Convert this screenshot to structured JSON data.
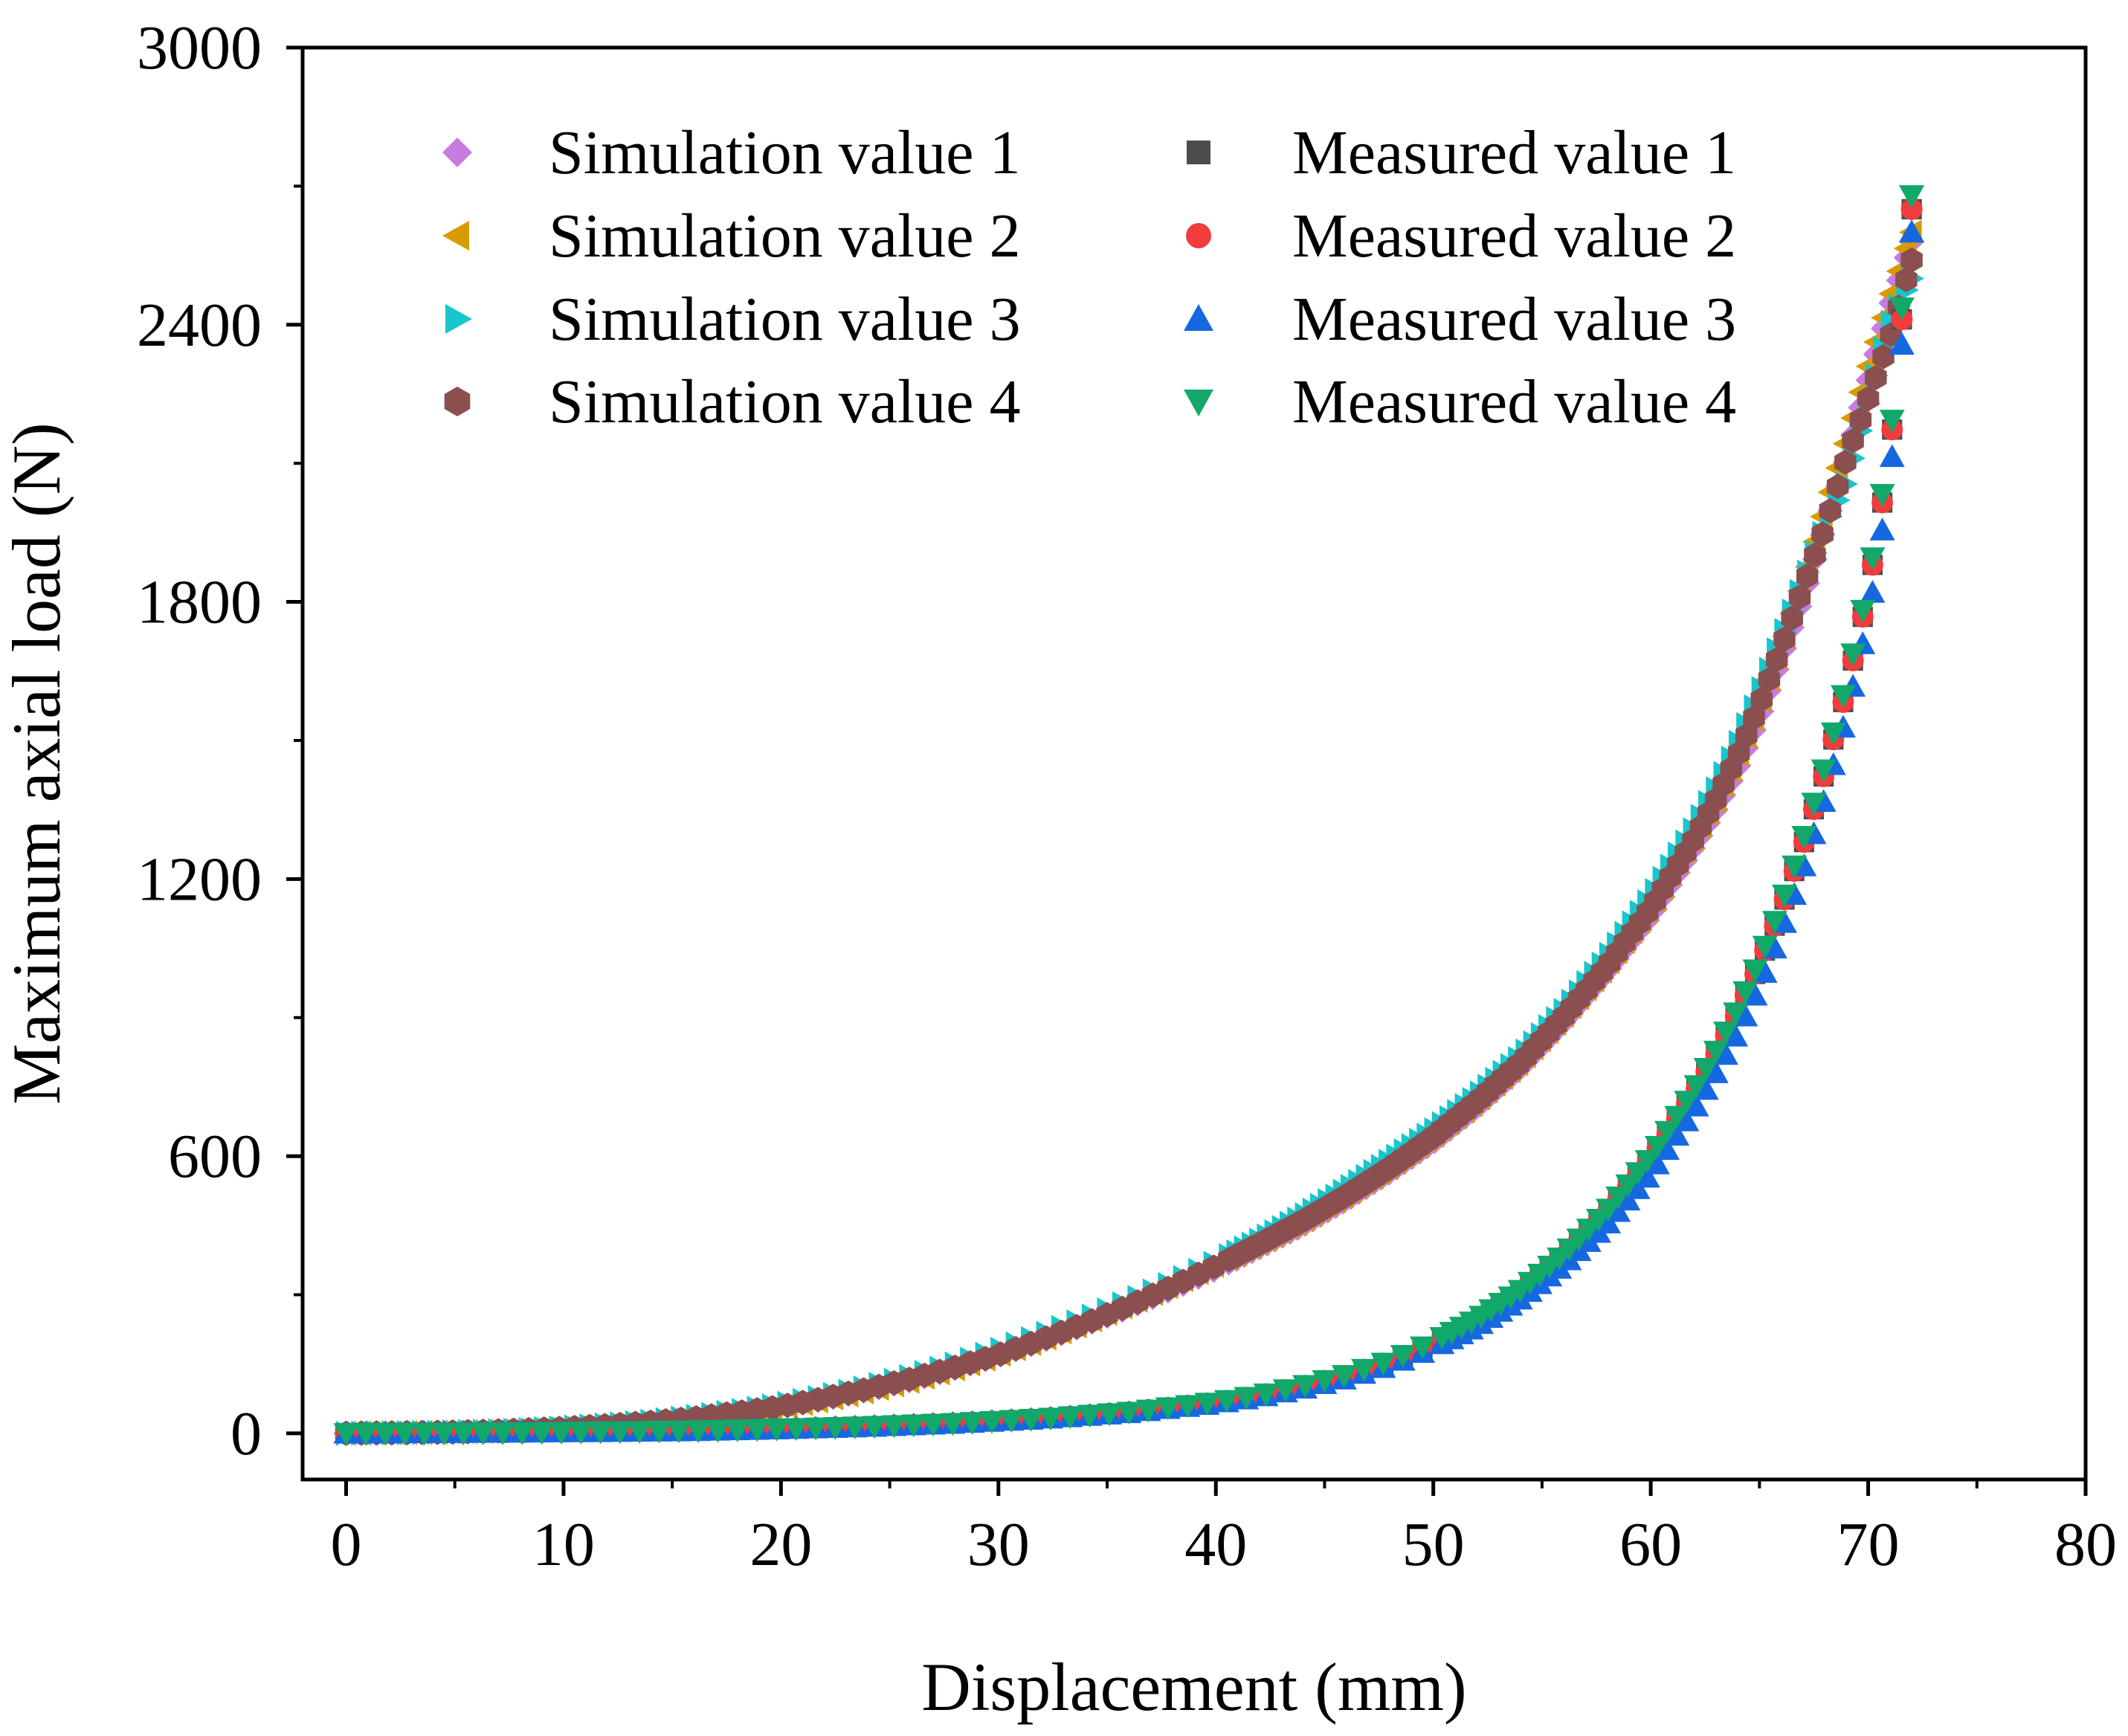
{
  "chart_data": {
    "type": "scatter",
    "title": "",
    "xlabel": "Displacement (mm)",
    "ylabel": "Maximum axial load (N)",
    "xlim": [
      -2,
      80
    ],
    "ylim": [
      -100,
      3000
    ],
    "xticks": [
      0,
      10,
      20,
      30,
      40,
      50,
      60,
      70,
      80
    ],
    "yticks": [
      0,
      600,
      1200,
      1800,
      2400,
      3000
    ],
    "xtick_labels": [
      "0",
      "10",
      "20",
      "30",
      "40",
      "50",
      "60",
      "70",
      "80"
    ],
    "ytick_labels": [
      "0",
      "600",
      "1200",
      "1800",
      "2400",
      "3000"
    ],
    "grid": false,
    "legend_position": "top-left",
    "series": [
      {
        "name": "Simulation value 1",
        "marker": "diamond",
        "color": "#c77ce0",
        "points": [
          [
            0,
            0
          ],
          [
            2,
            1
          ],
          [
            4,
            2
          ],
          [
            6,
            4
          ],
          [
            8,
            7
          ],
          [
            10,
            11
          ],
          [
            12,
            16
          ],
          [
            14,
            22
          ],
          [
            16,
            30
          ],
          [
            18,
            42
          ],
          [
            20,
            57
          ],
          [
            22,
            74
          ],
          [
            24,
            93
          ],
          [
            26,
            115
          ],
          [
            28,
            140
          ],
          [
            30,
            168
          ],
          [
            32,
            200
          ],
          [
            34,
            235
          ],
          [
            36,
            272
          ],
          [
            38,
            312
          ],
          [
            40,
            355
          ],
          [
            42,
            402
          ],
          [
            44,
            450
          ],
          [
            46,
            505
          ],
          [
            48,
            565
          ],
          [
            50,
            630
          ],
          [
            52,
            705
          ],
          [
            54,
            790
          ],
          [
            56,
            890
          ],
          [
            58,
            1000
          ],
          [
            60,
            1120
          ],
          [
            62,
            1270
          ],
          [
            63,
            1350
          ],
          [
            64,
            1440
          ],
          [
            65,
            1550
          ],
          [
            66,
            1680
          ],
          [
            67,
            1810
          ],
          [
            68,
            1960
          ],
          [
            69,
            2110
          ],
          [
            70,
            2280
          ],
          [
            71,
            2440
          ],
          [
            72,
            2580
          ]
        ]
      },
      {
        "name": "Simulation value 2",
        "marker": "triangle-left",
        "color": "#d79b00",
        "points": [
          [
            0,
            0
          ],
          [
            2,
            1
          ],
          [
            4,
            2
          ],
          [
            6,
            4
          ],
          [
            8,
            7
          ],
          [
            10,
            11
          ],
          [
            12,
            16
          ],
          [
            14,
            22
          ],
          [
            16,
            31
          ],
          [
            18,
            42
          ],
          [
            20,
            56
          ],
          [
            22,
            73
          ],
          [
            24,
            92
          ],
          [
            26,
            114
          ],
          [
            28,
            140
          ],
          [
            30,
            170
          ],
          [
            32,
            203
          ],
          [
            34,
            240
          ],
          [
            36,
            280
          ],
          [
            38,
            322
          ],
          [
            40,
            366
          ],
          [
            42,
            412
          ],
          [
            44,
            462
          ],
          [
            46,
            518
          ],
          [
            48,
            578
          ],
          [
            50,
            645
          ],
          [
            52,
            720
          ],
          [
            54,
            805
          ],
          [
            56,
            905
          ],
          [
            58,
            1015
          ],
          [
            60,
            1140
          ],
          [
            62,
            1290
          ],
          [
            63,
            1370
          ],
          [
            64,
            1465
          ],
          [
            65,
            1575
          ],
          [
            66,
            1705
          ],
          [
            67,
            1845
          ],
          [
            68,
            2000
          ],
          [
            69,
            2150
          ],
          [
            70,
            2310
          ],
          [
            71,
            2460
          ],
          [
            72,
            2600
          ]
        ]
      },
      {
        "name": "Simulation value 3",
        "marker": "triangle-right",
        "color": "#18c6cc",
        "points": [
          [
            0,
            0
          ],
          [
            2,
            1
          ],
          [
            4,
            2
          ],
          [
            6,
            4
          ],
          [
            8,
            7
          ],
          [
            10,
            12
          ],
          [
            12,
            18
          ],
          [
            14,
            26
          ],
          [
            16,
            36
          ],
          [
            18,
            48
          ],
          [
            20,
            62
          ],
          [
            22,
            80
          ],
          [
            24,
            100
          ],
          [
            26,
            124
          ],
          [
            28,
            150
          ],
          [
            30,
            180
          ],
          [
            32,
            213
          ],
          [
            34,
            248
          ],
          [
            36,
            286
          ],
          [
            38,
            326
          ],
          [
            40,
            370
          ],
          [
            42,
            418
          ],
          [
            44,
            470
          ],
          [
            46,
            528
          ],
          [
            48,
            590
          ],
          [
            50,
            655
          ],
          [
            52,
            730
          ],
          [
            54,
            815
          ],
          [
            56,
            915
          ],
          [
            58,
            1030
          ],
          [
            60,
            1160
          ],
          [
            62,
            1310
          ],
          [
            63,
            1395
          ],
          [
            64,
            1490
          ],
          [
            65,
            1600
          ],
          [
            66,
            1720
          ],
          [
            67,
            1840
          ],
          [
            68,
            1960
          ],
          [
            69,
            2060
          ],
          [
            70,
            2230
          ],
          [
            71,
            2400
          ],
          [
            72,
            2500
          ]
        ]
      },
      {
        "name": "Simulation value 4",
        "marker": "hexagon",
        "color": "#8b4f4f",
        "points": [
          [
            0,
            0
          ],
          [
            2,
            1
          ],
          [
            4,
            2
          ],
          [
            6,
            4
          ],
          [
            8,
            7
          ],
          [
            10,
            11
          ],
          [
            12,
            17
          ],
          [
            14,
            24
          ],
          [
            16,
            33
          ],
          [
            18,
            45
          ],
          [
            20,
            58
          ],
          [
            22,
            76
          ],
          [
            24,
            96
          ],
          [
            26,
            118
          ],
          [
            28,
            143
          ],
          [
            30,
            170
          ],
          [
            32,
            203
          ],
          [
            34,
            238
          ],
          [
            36,
            276
          ],
          [
            38,
            318
          ],
          [
            40,
            362
          ],
          [
            42,
            410
          ],
          [
            44,
            460
          ],
          [
            46,
            515
          ],
          [
            48,
            575
          ],
          [
            50,
            642
          ],
          [
            52,
            718
          ],
          [
            54,
            802
          ],
          [
            56,
            902
          ],
          [
            58,
            1012
          ],
          [
            60,
            1137
          ],
          [
            62,
            1287
          ],
          [
            63,
            1372
          ],
          [
            64,
            1467
          ],
          [
            65,
            1577
          ],
          [
            66,
            1700
          ],
          [
            67,
            1830
          ],
          [
            68,
            1960
          ],
          [
            69,
            2110
          ],
          [
            70,
            2240
          ],
          [
            71,
            2370
          ],
          [
            72,
            2540
          ]
        ]
      },
      {
        "name": "Measured value 1",
        "marker": "square",
        "color": "#4d4d4d",
        "points": [
          [
            0,
            0
          ],
          [
            4,
            1
          ],
          [
            8,
            2
          ],
          [
            12,
            4
          ],
          [
            16,
            6
          ],
          [
            20,
            10
          ],
          [
            24,
            15
          ],
          [
            28,
            22
          ],
          [
            32,
            32
          ],
          [
            36,
            46
          ],
          [
            40,
            67
          ],
          [
            42,
            82
          ],
          [
            44,
            102
          ],
          [
            46,
            126
          ],
          [
            48,
            156
          ],
          [
            50,
            196
          ],
          [
            52,
            246
          ],
          [
            54,
            308
          ],
          [
            56,
            386
          ],
          [
            58,
            480
          ],
          [
            60,
            595
          ],
          [
            62,
            738
          ],
          [
            63,
            820
          ],
          [
            64,
            912
          ],
          [
            65,
            1015
          ],
          [
            66,
            1135
          ],
          [
            67,
            1272
          ],
          [
            68,
            1430
          ],
          [
            69,
            1610
          ],
          [
            70,
            1820
          ],
          [
            71,
            2120
          ],
          [
            72,
            2650
          ]
        ]
      },
      {
        "name": "Measured value 2",
        "marker": "circle",
        "color": "#f03c3c",
        "points": [
          [
            0,
            0
          ],
          [
            4,
            1
          ],
          [
            8,
            2
          ],
          [
            12,
            4
          ],
          [
            16,
            6
          ],
          [
            20,
            10
          ],
          [
            24,
            15
          ],
          [
            28,
            22
          ],
          [
            32,
            32
          ],
          [
            36,
            46
          ],
          [
            40,
            67
          ],
          [
            42,
            82
          ],
          [
            44,
            102
          ],
          [
            46,
            126
          ],
          [
            48,
            156
          ],
          [
            50,
            196
          ],
          [
            52,
            246
          ],
          [
            54,
            308
          ],
          [
            56,
            386
          ],
          [
            58,
            480
          ],
          [
            60,
            595
          ],
          [
            62,
            738
          ],
          [
            63,
            820
          ],
          [
            64,
            912
          ],
          [
            65,
            1015
          ],
          [
            66,
            1135
          ],
          [
            67,
            1272
          ],
          [
            68,
            1430
          ],
          [
            69,
            1610
          ],
          [
            70,
            1820
          ],
          [
            71,
            2120
          ],
          [
            72,
            2650
          ]
        ]
      },
      {
        "name": "Measured value 3",
        "marker": "triangle-up",
        "color": "#1668e0",
        "points": [
          [
            0,
            0
          ],
          [
            4,
            1
          ],
          [
            8,
            2
          ],
          [
            12,
            3
          ],
          [
            16,
            5
          ],
          [
            20,
            9
          ],
          [
            24,
            14
          ],
          [
            28,
            21
          ],
          [
            32,
            31
          ],
          [
            36,
            44
          ],
          [
            40,
            64
          ],
          [
            42,
            78
          ],
          [
            44,
            96
          ],
          [
            46,
            118
          ],
          [
            48,
            146
          ],
          [
            50,
            184
          ],
          [
            52,
            231
          ],
          [
            54,
            290
          ],
          [
            56,
            364
          ],
          [
            58,
            452
          ],
          [
            60,
            562
          ],
          [
            62,
            700
          ],
          [
            63,
            780
          ],
          [
            64,
            868
          ],
          [
            65,
            968
          ],
          [
            66,
            1085
          ],
          [
            67,
            1220
          ],
          [
            68,
            1375
          ],
          [
            69,
            1555
          ],
          [
            70,
            1760
          ],
          [
            71,
            2060
          ],
          [
            72,
            2600
          ]
        ]
      },
      {
        "name": "Measured value 4",
        "marker": "triangle-down",
        "color": "#12a86a",
        "points": [
          [
            0,
            0
          ],
          [
            4,
            1
          ],
          [
            8,
            2
          ],
          [
            12,
            4
          ],
          [
            16,
            6
          ],
          [
            20,
            10
          ],
          [
            24,
            15
          ],
          [
            28,
            22
          ],
          [
            32,
            32
          ],
          [
            36,
            46
          ],
          [
            40,
            68
          ],
          [
            42,
            83
          ],
          [
            44,
            103
          ],
          [
            46,
            127
          ],
          [
            48,
            157
          ],
          [
            50,
            198
          ],
          [
            52,
            248
          ],
          [
            54,
            310
          ],
          [
            56,
            388
          ],
          [
            58,
            483
          ],
          [
            60,
            600
          ],
          [
            62,
            745
          ],
          [
            63,
            828
          ],
          [
            64,
            920
          ],
          [
            65,
            1025
          ],
          [
            66,
            1145
          ],
          [
            67,
            1285
          ],
          [
            68,
            1445
          ],
          [
            69,
            1625
          ],
          [
            70,
            1835
          ],
          [
            71,
            2140
          ],
          [
            72,
            2680
          ]
        ]
      }
    ]
  }
}
